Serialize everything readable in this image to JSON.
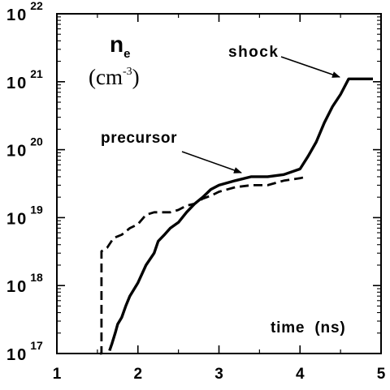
{
  "chart_data": {
    "type": "line",
    "title": "",
    "xlabel": "time  (ns)",
    "ylabel": "",
    "ylabel_symbol": "n",
    "ylabel_subscript": "e",
    "ylabel_unit": "(cm",
    "ylabel_unit_exp": "-3",
    "ylabel_unit_close": ")",
    "xlim": [
      1,
      5
    ],
    "ylim": [
      1e+17,
      1e+22
    ],
    "yscale": "log",
    "grid": false,
    "x_ticks": [
      {
        "value": 1,
        "label": "1"
      },
      {
        "value": 2,
        "label": "2"
      },
      {
        "value": 3,
        "label": "3"
      },
      {
        "value": 4,
        "label": "4"
      },
      {
        "value": 5,
        "label": "5"
      }
    ],
    "y_ticks": [
      {
        "value": 1e+17,
        "base": "10",
        "exp": "17"
      },
      {
        "value": 1e+18,
        "base": "10",
        "exp": "18"
      },
      {
        "value": 1e+19,
        "base": "10",
        "exp": "19"
      },
      {
        "value": 1e+20,
        "base": "10",
        "exp": "20"
      },
      {
        "value": 1e+21,
        "base": "10",
        "exp": "21"
      },
      {
        "value": 1e+22,
        "base": "10",
        "exp": "22"
      }
    ],
    "annotations": [
      {
        "text": "shock",
        "points_to": [
          4.6,
          1.1e+21
        ]
      },
      {
        "text": "precursor",
        "points_to": [
          3.05,
          3.3e+19
        ]
      }
    ],
    "series": [
      {
        "style": "solid",
        "color": "#000000",
        "x": [
          1.65,
          1.68,
          1.72,
          1.75,
          1.8,
          1.85,
          1.9,
          2.0,
          2.1,
          2.2,
          2.25,
          2.32,
          2.4,
          2.5,
          2.6,
          2.7,
          2.8,
          2.9,
          3.0,
          3.2,
          3.4,
          3.6,
          3.8,
          4.0,
          4.1,
          4.2,
          4.3,
          4.4,
          4.5,
          4.6,
          4.9
        ],
        "y": [
          1.1e+17,
          1.4e+17,
          2e+17,
          2.7e+17,
          3.4e+17,
          5e+17,
          7e+17,
          1.1e+18,
          2e+18,
          3e+18,
          4.5e+18,
          5.5e+18,
          7e+18,
          8.5e+18,
          1.2e+19,
          1.6e+19,
          2e+19,
          2.6e+19,
          3e+19,
          3.5e+19,
          4e+19,
          4e+19,
          4.3e+19,
          5.2e+19,
          8e+19,
          1.3e+20,
          2.5e+20,
          4.3e+20,
          6.5e+20,
          1.1e+21,
          1.1e+21
        ]
      },
      {
        "style": "dashed",
        "color": "#000000",
        "x": [
          1.53,
          1.55,
          1.55,
          1.62,
          1.7,
          1.8,
          1.9,
          2.0,
          2.1,
          2.2,
          2.3,
          2.4,
          2.5,
          2.6,
          2.7,
          2.8,
          2.9,
          3.0,
          3.2,
          3.4,
          3.6,
          3.8,
          4.0,
          4.08
        ],
        "y": [
          1e+17,
          1e+17,
          3.2e+18,
          3.6e+18,
          5e+18,
          5.6e+18,
          7e+18,
          8e+18,
          1.1e+19,
          1.2e+19,
          1.2e+19,
          1.2e+19,
          1.3e+19,
          1.5e+19,
          1.6e+19,
          1.9e+19,
          2.1e+19,
          2.4e+19,
          2.8e+19,
          3e+19,
          3e+19,
          3.5e+19,
          3.8e+19,
          4e+19
        ]
      }
    ]
  }
}
